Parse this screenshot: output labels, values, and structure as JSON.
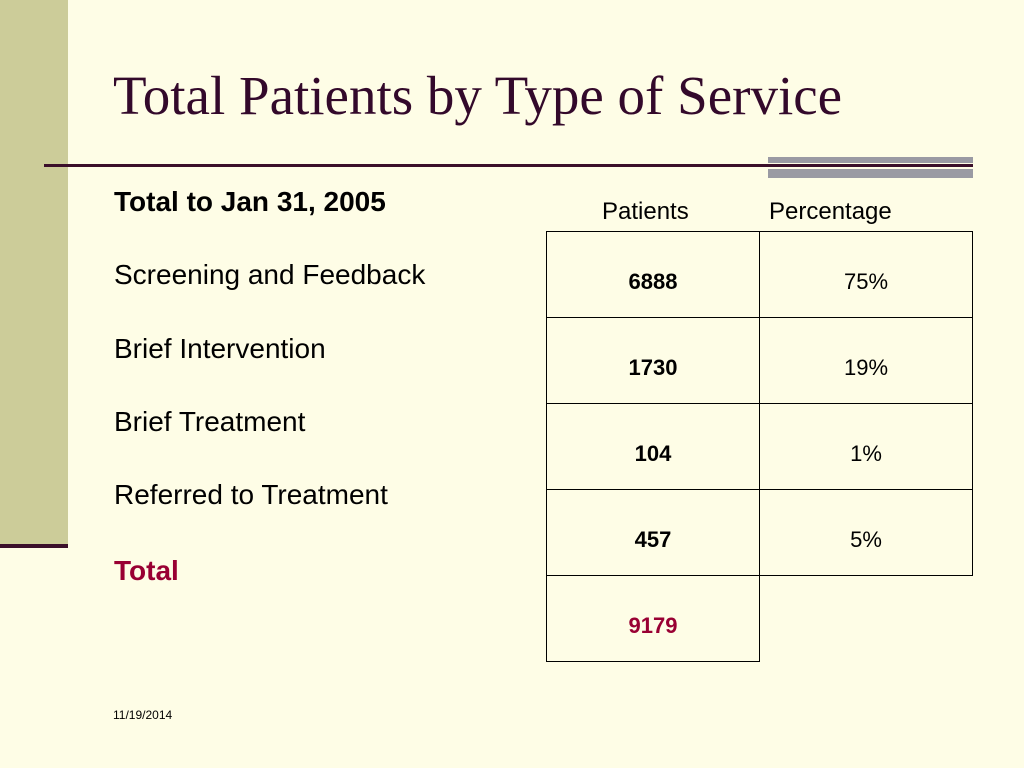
{
  "title": "Total Patients by Type of Service",
  "colors": {
    "background": "#fefde6",
    "accent_band": "#cccc99",
    "title_text": "#33092b",
    "rule": "#3b0f2a",
    "total_text": "#990033"
  },
  "subtitle": "Total to Jan 31, 2005",
  "columns": {
    "patients": "Patients",
    "percentage": "Percentage"
  },
  "rows": [
    {
      "label": "Screening and Feedback",
      "patients": "6888",
      "percentage": "75%"
    },
    {
      "label": "Brief Intervention",
      "patients": "1730",
      "percentage": "19%"
    },
    {
      "label": "Brief Treatment",
      "patients": "104",
      "percentage": "1%"
    },
    {
      "label": "Referred to Treatment",
      "patients": "457",
      "percentage": "5%"
    }
  ],
  "total": {
    "label": "Total",
    "patients": "9179"
  },
  "footer": {
    "date": "11/19/2014"
  }
}
